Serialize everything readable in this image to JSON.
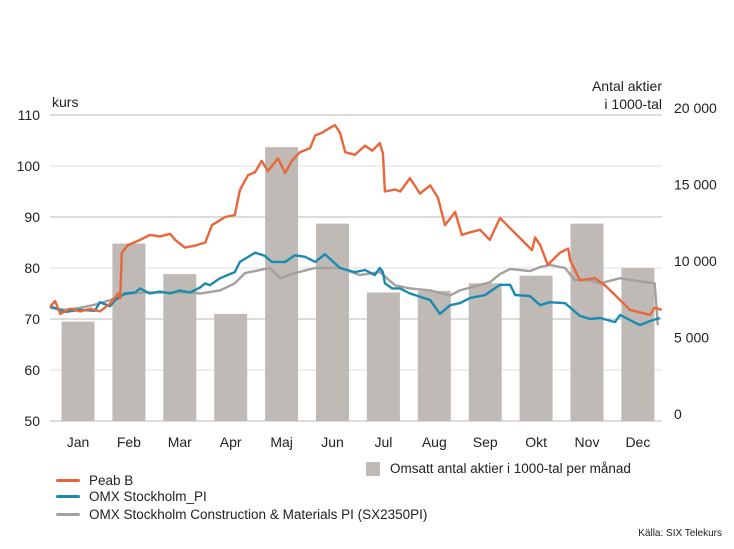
{
  "chart_data": {
    "type": "bar+line",
    "left_axis": {
      "label": "kurs",
      "range": [
        50,
        110
      ],
      "ticks": [
        50,
        60,
        70,
        80,
        90,
        100,
        110
      ]
    },
    "right_axis": {
      "label_line1": "Antal aktier",
      "label_line2": "i 1000-tal",
      "range": [
        0,
        20000
      ],
      "ticks": [
        "0",
        "5 000",
        "10 000",
        "15 000",
        "20 000"
      ],
      "tick_values": [
        0,
        5000,
        10000,
        15000,
        20000
      ]
    },
    "categories": [
      "Jan",
      "Feb",
      "Mar",
      "Apr",
      "Maj",
      "Jun",
      "Jul",
      "Aug",
      "Sep",
      "Okt",
      "Nov",
      "Dec"
    ],
    "grid": true,
    "bars": {
      "name": "Omsatt antal aktier i 1000-tal per månad",
      "color": "#bfbab6",
      "values": [
        6500,
        11600,
        9600,
        7000,
        17900,
        12900,
        8400,
        8500,
        9000,
        9500,
        12900,
        10000
      ]
    },
    "series": [
      {
        "name": "Peab B",
        "color": "#e8673a",
        "points": [
          [
            0.45,
            72.4
          ],
          [
            0.55,
            73.5
          ],
          [
            0.65,
            71
          ],
          [
            0.84,
            72
          ],
          [
            1.04,
            71.5
          ],
          [
            1.24,
            72
          ],
          [
            1.43,
            71.5
          ],
          [
            1.63,
            73
          ],
          [
            1.79,
            75
          ],
          [
            1.83,
            74
          ],
          [
            1.86,
            83
          ],
          [
            1.98,
            84.5
          ],
          [
            2.22,
            85.5
          ],
          [
            2.41,
            86.5
          ],
          [
            2.61,
            86.2
          ],
          [
            2.81,
            86.7
          ],
          [
            2.91,
            85.5
          ],
          [
            3.1,
            84
          ],
          [
            3.3,
            84.4
          ],
          [
            3.5,
            85
          ],
          [
            3.63,
            88.4
          ],
          [
            3.89,
            90
          ],
          [
            4.08,
            90.4
          ],
          [
            4.18,
            95.3
          ],
          [
            4.34,
            98.2
          ],
          [
            4.48,
            98.8
          ],
          [
            4.61,
            101
          ],
          [
            4.73,
            99
          ],
          [
            4.93,
            101.5
          ],
          [
            5.07,
            98.6
          ],
          [
            5.2,
            101
          ],
          [
            5.36,
            102.7
          ],
          [
            5.56,
            103.5
          ],
          [
            5.66,
            106
          ],
          [
            5.79,
            106.5
          ],
          [
            5.95,
            107.5
          ],
          [
            6.05,
            108
          ],
          [
            6.15,
            106.5
          ],
          [
            6.25,
            102.7
          ],
          [
            6.44,
            102.2
          ],
          [
            6.64,
            104
          ],
          [
            6.78,
            103
          ],
          [
            6.93,
            104.5
          ],
          [
            6.99,
            102.5
          ],
          [
            7.03,
            95
          ],
          [
            7.23,
            95.4
          ],
          [
            7.33,
            95
          ],
          [
            7.52,
            97.6
          ],
          [
            7.72,
            94.6
          ],
          [
            7.92,
            96.2
          ],
          [
            8.07,
            93.8
          ],
          [
            8.21,
            88.4
          ],
          [
            8.41,
            91
          ],
          [
            8.54,
            86.5
          ],
          [
            8.7,
            87
          ],
          [
            8.9,
            87.5
          ],
          [
            9.09,
            85.5
          ],
          [
            9.29,
            89.8
          ],
          [
            9.49,
            87.8
          ],
          [
            9.72,
            85.5
          ],
          [
            9.92,
            83.5
          ],
          [
            9.98,
            86
          ],
          [
            10.08,
            84.5
          ],
          [
            10.23,
            80.6
          ],
          [
            10.47,
            83
          ],
          [
            10.63,
            83.8
          ],
          [
            10.67,
            81.5
          ],
          [
            10.86,
            77.6
          ],
          [
            11.16,
            78
          ],
          [
            11.35,
            76.6
          ],
          [
            11.55,
            74.7
          ],
          [
            11.84,
            71.8
          ],
          [
            12.24,
            70.8
          ],
          [
            12.33,
            72.2
          ],
          [
            12.47,
            71.8
          ]
        ]
      },
      {
        "name": "OMX Stockholm_PI",
        "color": "#1a8bb0",
        "points": [
          [
            0.45,
            72.5
          ],
          [
            0.75,
            71.4
          ],
          [
            1.04,
            71.8
          ],
          [
            1.33,
            71.6
          ],
          [
            1.43,
            73.3
          ],
          [
            1.63,
            72.5
          ],
          [
            1.73,
            73.7
          ],
          [
            1.92,
            75
          ],
          [
            2.12,
            75.2
          ],
          [
            2.22,
            76
          ],
          [
            2.41,
            75
          ],
          [
            2.61,
            75.4
          ],
          [
            2.81,
            75
          ],
          [
            3.0,
            75.6
          ],
          [
            3.2,
            75.2
          ],
          [
            3.4,
            76.2
          ],
          [
            3.5,
            77
          ],
          [
            3.59,
            76.6
          ],
          [
            3.79,
            78
          ],
          [
            4.08,
            79.2
          ],
          [
            4.18,
            81.2
          ],
          [
            4.48,
            83
          ],
          [
            4.67,
            82.4
          ],
          [
            4.81,
            81.2
          ],
          [
            5.07,
            81.2
          ],
          [
            5.26,
            82.5
          ],
          [
            5.46,
            82.2
          ],
          [
            5.66,
            81.2
          ],
          [
            5.85,
            82.7
          ],
          [
            6.15,
            80
          ],
          [
            6.44,
            79.2
          ],
          [
            6.64,
            79.6
          ],
          [
            6.83,
            78.6
          ],
          [
            6.93,
            80
          ],
          [
            6.99,
            79.2
          ],
          [
            7.03,
            77
          ],
          [
            7.17,
            76
          ],
          [
            7.33,
            76
          ],
          [
            7.52,
            75
          ],
          [
            7.72,
            74.4
          ],
          [
            7.92,
            73.7
          ],
          [
            8.11,
            71
          ],
          [
            8.31,
            72.7
          ],
          [
            8.5,
            73.1
          ],
          [
            8.7,
            74.1
          ],
          [
            9.0,
            74.7
          ],
          [
            9.29,
            76.7
          ],
          [
            9.49,
            76.7
          ],
          [
            9.59,
            74.7
          ],
          [
            9.88,
            74.5
          ],
          [
            10.08,
            72.7
          ],
          [
            10.27,
            73.3
          ],
          [
            10.57,
            73.1
          ],
          [
            10.86,
            70.6
          ],
          [
            11.06,
            70
          ],
          [
            11.26,
            70.2
          ],
          [
            11.55,
            69.4
          ],
          [
            11.65,
            70.8
          ],
          [
            11.84,
            69.8
          ],
          [
            12.04,
            68.8
          ],
          [
            12.24,
            69.6
          ],
          [
            12.43,
            70.2
          ]
        ]
      },
      {
        "name": "OMX Stockholm Construction & Materials PI (SX2350PI)",
        "color": "#a3a09d",
        "points": [
          [
            0.45,
            72.2
          ],
          [
            0.75,
            71.8
          ],
          [
            1.04,
            72.2
          ],
          [
            1.33,
            72.8
          ],
          [
            1.63,
            73.7
          ],
          [
            1.92,
            74.8
          ],
          [
            2.22,
            75.2
          ],
          [
            2.61,
            75.2
          ],
          [
            3.2,
            75.2
          ],
          [
            3.4,
            75
          ],
          [
            3.79,
            75.6
          ],
          [
            4.08,
            77
          ],
          [
            4.28,
            79
          ],
          [
            4.77,
            80
          ],
          [
            4.97,
            78
          ],
          [
            5.26,
            79
          ],
          [
            5.66,
            80
          ],
          [
            6.15,
            80
          ],
          [
            6.54,
            78.6
          ],
          [
            6.93,
            79.2
          ],
          [
            7.23,
            76.6
          ],
          [
            7.52,
            76
          ],
          [
            7.92,
            75.6
          ],
          [
            8.31,
            74.6
          ],
          [
            8.5,
            75.6
          ],
          [
            8.8,
            76.4
          ],
          [
            9.09,
            77.2
          ],
          [
            9.29,
            78.8
          ],
          [
            9.49,
            79.8
          ],
          [
            9.88,
            79.4
          ],
          [
            10.08,
            80.2
          ],
          [
            10.27,
            80.6
          ],
          [
            10.57,
            80
          ],
          [
            10.76,
            77.6
          ],
          [
            11.06,
            77.6
          ],
          [
            11.26,
            77
          ],
          [
            11.65,
            78
          ],
          [
            12.04,
            77.4
          ],
          [
            12.33,
            77
          ],
          [
            12.39,
            68.8
          ]
        ]
      }
    ]
  },
  "legend": {
    "bars_label": "Omsatt antal aktier i 1000-tal per månad",
    "items": [
      "Peab B",
      "OMX Stockholm_PI",
      "OMX Stockholm Construction & Materials PI (SX2350PI)"
    ]
  },
  "source": "Källa: SIX Telekurs"
}
